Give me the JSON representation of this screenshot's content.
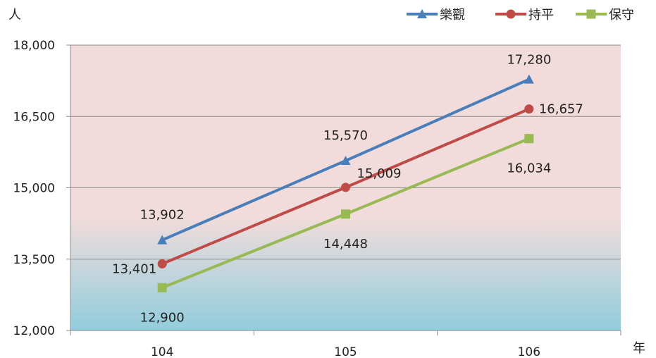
{
  "chart_data": {
    "type": "line",
    "categories": [
      "104",
      "105",
      "106"
    ],
    "series": [
      {
        "name": "樂觀",
        "values": [
          13902,
          15570,
          17280
        ],
        "color": "#4a7ebb",
        "marker": "triangle"
      },
      {
        "name": "持平",
        "values": [
          13401,
          15009,
          16657
        ],
        "color": "#be4b48",
        "marker": "circle"
      },
      {
        "name": "保守",
        "values": [
          12900,
          14448,
          16034
        ],
        "color": "#98b954",
        "marker": "square"
      }
    ],
    "title": "",
    "xlabel": "年",
    "ylabel": "人",
    "ylim": [
      12000,
      18000
    ],
    "yticks": [
      "12,000",
      "13,500",
      "15,000",
      "16,500",
      "18,000"
    ],
    "grid": true,
    "legend_position": "top-right",
    "data_labels": [
      [
        "13,902",
        "15,570",
        "17,280"
      ],
      [
        "13,401",
        "15,009",
        "16,657"
      ],
      [
        "12,900",
        "14,448",
        "16,034"
      ]
    ],
    "background_gradient": [
      "#f2dcdb",
      "#92cddc"
    ]
  }
}
